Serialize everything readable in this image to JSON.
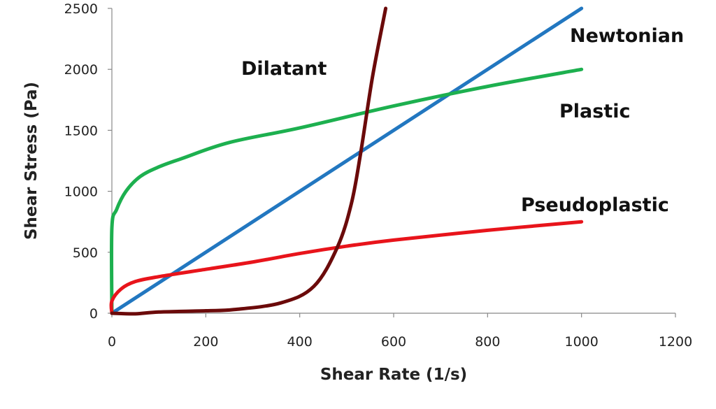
{
  "chart_data": {
    "type": "line",
    "title": "",
    "xlabel": "Shear Rate (1/s)",
    "ylabel": "Shear Stress (Pa)",
    "xlim": [
      0,
      1200
    ],
    "ylim": [
      0,
      2500
    ],
    "xticks": [
      0,
      200,
      400,
      600,
      800,
      1000,
      1200
    ],
    "yticks": [
      0,
      500,
      1000,
      1500,
      2000,
      2500
    ],
    "grid": false,
    "legend": "none (curves labelled directly)",
    "series": [
      {
        "name": "Newtonian",
        "color": "#2277C0",
        "x": [
          0,
          1000
        ],
        "y": [
          0,
          2500
        ]
      },
      {
        "name": "Plastic",
        "color": "#1DB04F",
        "x": [
          0,
          0,
          10,
          30,
          60,
          100,
          150,
          250,
          400,
          600,
          800,
          1000
        ],
        "y": [
          0,
          700,
          850,
          1000,
          1120,
          1200,
          1270,
          1400,
          1520,
          1700,
          1860,
          2000
        ]
      },
      {
        "name": "Pseudoplastic",
        "color": "#E8141B",
        "x": [
          0,
          0,
          20,
          50,
          100,
          200,
          300,
          400,
          500,
          600,
          800,
          1000
        ],
        "y": [
          0,
          100,
          200,
          260,
          300,
          360,
          420,
          490,
          550,
          600,
          680,
          750
        ]
      },
      {
        "name": "Dilatant",
        "color": "#6B0A0A",
        "x": [
          0,
          50,
          100,
          200,
          260,
          360,
          430,
          480,
          510,
          530,
          555,
          583
        ],
        "y": [
          0,
          -5,
          10,
          20,
          30,
          85,
          220,
          540,
          900,
          1320,
          1940,
          2500
        ]
      }
    ]
  }
}
